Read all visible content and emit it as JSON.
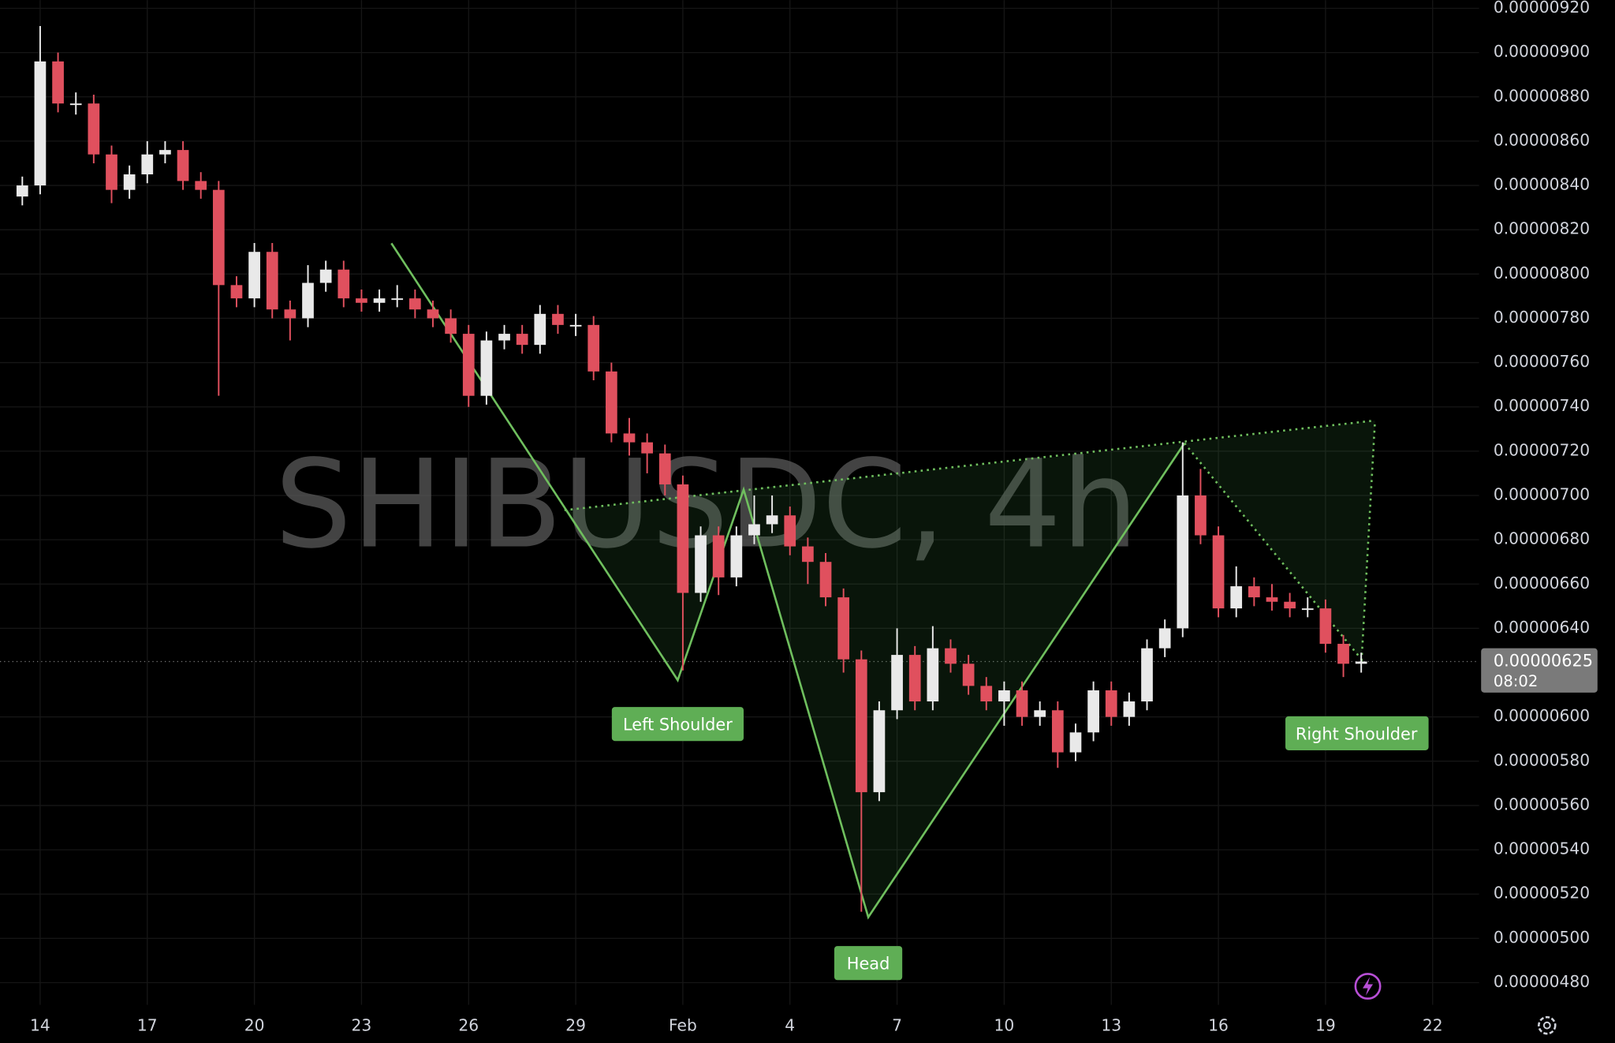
{
  "chart_data": {
    "type": "candlestick",
    "title": "SHIBUSDC, 4h",
    "x": [
      -0.5,
      0,
      0.5,
      1,
      1.5,
      2,
      2.5,
      3,
      3.5,
      4,
      4.5,
      5,
      5.5,
      6,
      6.5,
      7,
      7.5,
      8,
      8.5,
      9,
      9.5,
      10,
      10.5,
      11,
      11.5,
      12,
      12.5,
      13,
      13.5,
      14,
      14.5,
      15,
      15.5,
      16,
      16.5,
      17,
      17.5,
      18,
      18.5,
      19,
      19.5,
      20,
      20.5,
      21,
      21.5,
      22,
      22.5,
      23,
      23.5,
      24,
      24.5,
      25,
      25.5,
      26,
      26.5,
      27,
      27.5,
      28,
      28.5,
      29,
      29.5,
      30,
      30.5,
      31,
      31.5,
      32,
      32.5,
      33,
      33.5,
      34,
      34.5,
      35,
      35.5,
      36,
      36.5,
      37
    ],
    "open": [
      8.35e-06,
      8.4e-06,
      8.96e-06,
      8.77e-06,
      8.77e-06,
      8.54e-06,
      8.38e-06,
      8.45e-06,
      8.54e-06,
      8.56e-06,
      8.42e-06,
      8.38e-06,
      7.95e-06,
      7.89e-06,
      8.1e-06,
      7.84e-06,
      7.8e-06,
      7.96e-06,
      8.02e-06,
      7.89e-06,
      7.87e-06,
      7.89e-06,
      7.89e-06,
      7.84e-06,
      7.8e-06,
      7.73e-06,
      7.45e-06,
      7.7e-06,
      7.73e-06,
      7.68e-06,
      7.82e-06,
      7.77e-06,
      7.77e-06,
      7.56e-06,
      7.28e-06,
      7.24e-06,
      7.19e-06,
      7.05e-06,
      6.56e-06,
      6.82e-06,
      6.63e-06,
      6.82e-06,
      6.87e-06,
      6.91e-06,
      6.77e-06,
      6.7e-06,
      6.54e-06,
      6.26e-06,
      5.66e-06,
      6.03e-06,
      6.28e-06,
      6.07e-06,
      6.31e-06,
      6.24e-06,
      6.14e-06,
      6.07e-06,
      6.12e-06,
      6e-06,
      6.03e-06,
      5.84e-06,
      5.93e-06,
      6.12e-06,
      6e-06,
      6.07e-06,
      6.31e-06,
      6.4e-06,
      7e-06,
      6.82e-06,
      6.49e-06,
      6.59e-06,
      6.54e-06,
      6.52e-06,
      6.49e-06,
      6.49e-06,
      6.33e-06,
      6.24e-06
    ],
    "high": [
      8.44e-06,
      9.12e-06,
      9e-06,
      8.82e-06,
      8.81e-06,
      8.58e-06,
      8.49e-06,
      8.6e-06,
      8.6e-06,
      8.6e-06,
      8.46e-06,
      8.42e-06,
      7.99e-06,
      8.14e-06,
      8.14e-06,
      7.88e-06,
      8.04e-06,
      8.06e-06,
      8.06e-06,
      7.93e-06,
      7.93e-06,
      7.95e-06,
      7.93e-06,
      7.88e-06,
      7.84e-06,
      7.77e-06,
      7.74e-06,
      7.77e-06,
      7.77e-06,
      7.86e-06,
      7.86e-06,
      7.82e-06,
      7.81e-06,
      7.6e-06,
      7.35e-06,
      7.28e-06,
      7.23e-06,
      7.09e-06,
      6.86e-06,
      6.86e-06,
      6.86e-06,
      7e-06,
      7e-06,
      6.95e-06,
      6.81e-06,
      6.74e-06,
      6.58e-06,
      6.3e-06,
      6.07e-06,
      6.4e-06,
      6.32e-06,
      6.41e-06,
      6.35e-06,
      6.28e-06,
      6.18e-06,
      6.16e-06,
      6.16e-06,
      6.07e-06,
      6.07e-06,
      5.97e-06,
      6.16e-06,
      6.16e-06,
      6.11e-06,
      6.35e-06,
      6.44e-06,
      7.24e-06,
      7.12e-06,
      6.86e-06,
      6.68e-06,
      6.63e-06,
      6.6e-06,
      6.56e-06,
      6.54e-06,
      6.53e-06,
      6.37e-06,
      6.29e-06
    ],
    "low": [
      8.31e-06,
      8.36e-06,
      8.73e-06,
      8.72e-06,
      8.5e-06,
      8.32e-06,
      8.34e-06,
      8.41e-06,
      8.5e-06,
      8.38e-06,
      8.34e-06,
      7.45e-06,
      7.85e-06,
      7.85e-06,
      7.8e-06,
      7.7e-06,
      7.76e-06,
      7.92e-06,
      7.85e-06,
      7.83e-06,
      7.83e-06,
      7.85e-06,
      7.8e-06,
      7.76e-06,
      7.69e-06,
      7.4e-06,
      7.41e-06,
      7.66e-06,
      7.64e-06,
      7.64e-06,
      7.73e-06,
      7.72e-06,
      7.52e-06,
      7.24e-06,
      7.18e-06,
      7.1e-06,
      7e-06,
      6.21e-06,
      6.52e-06,
      6.55e-06,
      6.59e-06,
      6.78e-06,
      6.83e-06,
      6.73e-06,
      6.6e-06,
      6.5e-06,
      6.2e-06,
      5.12e-06,
      5.62e-06,
      5.99e-06,
      6.03e-06,
      6.03e-06,
      6.2e-06,
      6.1e-06,
      6.03e-06,
      5.96e-06,
      5.96e-06,
      5.96e-06,
      5.77e-06,
      5.8e-06,
      5.89e-06,
      5.96e-06,
      5.96e-06,
      6.03e-06,
      6.27e-06,
      6.36e-06,
      6.78e-06,
      6.45e-06,
      6.45e-06,
      6.5e-06,
      6.48e-06,
      6.45e-06,
      6.45e-06,
      6.29e-06,
      6.18e-06,
      6.2e-06
    ],
    "close": [
      8.4e-06,
      8.96e-06,
      8.77e-06,
      8.77e-06,
      8.54e-06,
      8.38e-06,
      8.45e-06,
      8.54e-06,
      8.56e-06,
      8.42e-06,
      8.38e-06,
      7.95e-06,
      7.89e-06,
      8.1e-06,
      7.84e-06,
      7.8e-06,
      7.96e-06,
      8.02e-06,
      7.89e-06,
      7.87e-06,
      7.89e-06,
      7.89e-06,
      7.84e-06,
      7.8e-06,
      7.73e-06,
      7.45e-06,
      7.7e-06,
      7.73e-06,
      7.68e-06,
      7.82e-06,
      7.77e-06,
      7.77e-06,
      7.56e-06,
      7.28e-06,
      7.24e-06,
      7.19e-06,
      7.05e-06,
      6.56e-06,
      6.82e-06,
      6.63e-06,
      6.82e-06,
      6.87e-06,
      6.91e-06,
      6.77e-06,
      6.7e-06,
      6.54e-06,
      6.26e-06,
      5.66e-06,
      6.03e-06,
      6.28e-06,
      6.07e-06,
      6.31e-06,
      6.24e-06,
      6.14e-06,
      6.07e-06,
      6.12e-06,
      6e-06,
      6.03e-06,
      5.84e-06,
      5.93e-06,
      6.12e-06,
      6e-06,
      6.07e-06,
      6.31e-06,
      6.4e-06,
      7e-06,
      6.82e-06,
      6.49e-06,
      6.59e-06,
      6.54e-06,
      6.52e-06,
      6.49e-06,
      6.49e-06,
      6.33e-06,
      6.24e-06,
      6.25e-06
    ],
    "up_color": "#e9e9e9",
    "down_color": "#e0505e",
    "xlim": [
      -1.125,
      40.3
    ],
    "xticks": [
      {
        "value": 0,
        "label": "14"
      },
      {
        "value": 3,
        "label": "17"
      },
      {
        "value": 6,
        "label": "20"
      },
      {
        "value": 9,
        "label": "23"
      },
      {
        "value": 12,
        "label": "26"
      },
      {
        "value": 15,
        "label": "29"
      },
      {
        "value": 18,
        "label": "Feb"
      },
      {
        "value": 21,
        "label": "4"
      },
      {
        "value": 24,
        "label": "7"
      },
      {
        "value": 27,
        "label": "10"
      },
      {
        "value": 30,
        "label": "13"
      },
      {
        "value": 33,
        "label": "16"
      },
      {
        "value": 36,
        "label": "19"
      },
      {
        "value": 39,
        "label": "22"
      }
    ],
    "ylim": [
      4.7e-06,
      9.237e-06
    ],
    "yticks": [
      {
        "value": 9.2e-06,
        "label": "0.00000920"
      },
      {
        "value": 9e-06,
        "label": "0.00000900"
      },
      {
        "value": 8.8e-06,
        "label": "0.00000880"
      },
      {
        "value": 8.6e-06,
        "label": "0.00000860"
      },
      {
        "value": 8.4e-06,
        "label": "0.00000840"
      },
      {
        "value": 8.2e-06,
        "label": "0.00000820"
      },
      {
        "value": 8e-06,
        "label": "0.00000800"
      },
      {
        "value": 7.8e-06,
        "label": "0.00000780"
      },
      {
        "value": 7.6e-06,
        "label": "0.00000760"
      },
      {
        "value": 7.4e-06,
        "label": "0.00000740"
      },
      {
        "value": 7.2e-06,
        "label": "0.00000720"
      },
      {
        "value": 7e-06,
        "label": "0.00000700"
      },
      {
        "value": 6.8e-06,
        "label": "0.00000680"
      },
      {
        "value": 6.6e-06,
        "label": "0.00000660"
      },
      {
        "value": 6.4e-06,
        "label": "0.00000640"
      },
      {
        "value": 6e-06,
        "label": "0.00000600"
      },
      {
        "value": 5.8e-06,
        "label": "0.00000580"
      },
      {
        "value": 5.6e-06,
        "label": "0.00000560"
      },
      {
        "value": 5.4e-06,
        "label": "0.00000540"
      },
      {
        "value": 5.2e-06,
        "label": "0.00000520"
      },
      {
        "value": 5e-06,
        "label": "0.00000500"
      },
      {
        "value": 4.8e-06,
        "label": "0.00000480"
      }
    ],
    "grid": true,
    "current_price": {
      "value": 6.25e-06,
      "label": "0.00000625"
    },
    "countdown": "08:02",
    "annotations": [
      "Left Shoulder",
      "Head",
      "Right Shoulder"
    ]
  }
}
